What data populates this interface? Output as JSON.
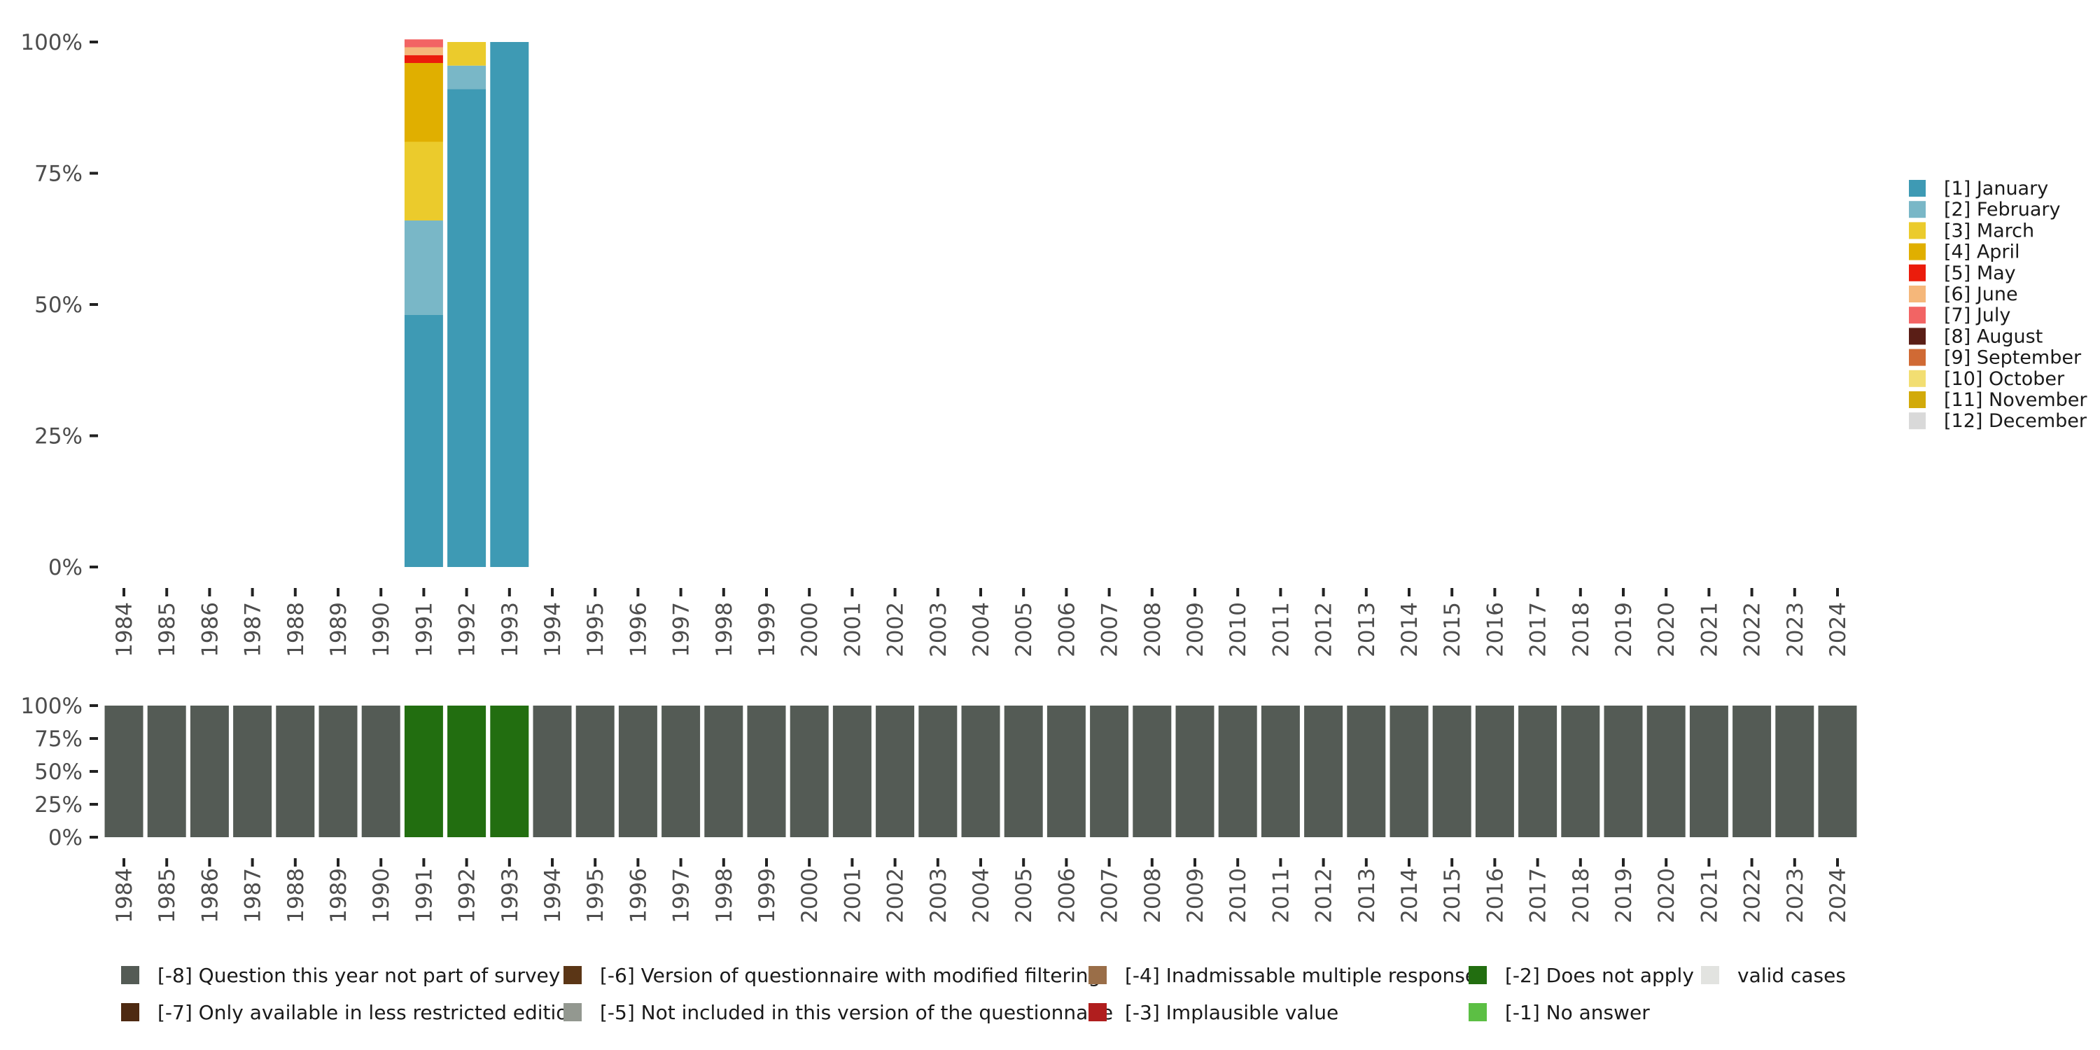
{
  "chart_data": [
    {
      "type": "bar",
      "stacked": true,
      "categories": [
        "1984",
        "1985",
        "1986",
        "1987",
        "1988",
        "1989",
        "1990",
        "1991",
        "1992",
        "1993",
        "1994",
        "1995",
        "1996",
        "1997",
        "1998",
        "1999",
        "2000",
        "2001",
        "2002",
        "2003",
        "2004",
        "2005",
        "2006",
        "2007",
        "2008",
        "2009",
        "2010",
        "2011",
        "2012",
        "2013",
        "2014",
        "2015",
        "2016",
        "2017",
        "2018",
        "2019",
        "2020",
        "2021",
        "2022",
        "2023",
        "2024"
      ],
      "y_ticks": [
        "0%",
        "25%",
        "50%",
        "75%",
        "100%"
      ],
      "ylim": [
        0,
        100
      ],
      "legend_position": "right",
      "series": [
        {
          "name": "[1] January",
          "color": "#3E9AB4",
          "values": [
            0,
            0,
            0,
            0,
            0,
            0,
            0,
            48,
            91,
            100,
            0,
            0,
            0,
            0,
            0,
            0,
            0,
            0,
            0,
            0,
            0,
            0,
            0,
            0,
            0,
            0,
            0,
            0,
            0,
            0,
            0,
            0,
            0,
            0,
            0,
            0,
            0,
            0,
            0,
            0,
            0
          ]
        },
        {
          "name": "[2] February",
          "color": "#79B7C7",
          "values": [
            0,
            0,
            0,
            0,
            0,
            0,
            0,
            18,
            4.5,
            0,
            0,
            0,
            0,
            0,
            0,
            0,
            0,
            0,
            0,
            0,
            0,
            0,
            0,
            0,
            0,
            0,
            0,
            0,
            0,
            0,
            0,
            0,
            0,
            0,
            0,
            0,
            0,
            0,
            0,
            0,
            0
          ]
        },
        {
          "name": "[3] March",
          "color": "#EBCB2C",
          "values": [
            0,
            0,
            0,
            0,
            0,
            0,
            0,
            15,
            4.5,
            0,
            0,
            0,
            0,
            0,
            0,
            0,
            0,
            0,
            0,
            0,
            0,
            0,
            0,
            0,
            0,
            0,
            0,
            0,
            0,
            0,
            0,
            0,
            0,
            0,
            0,
            0,
            0,
            0,
            0,
            0,
            0
          ]
        },
        {
          "name": "[4] April",
          "color": "#E0AF00",
          "values": [
            0,
            0,
            0,
            0,
            0,
            0,
            0,
            15,
            0,
            0,
            0,
            0,
            0,
            0,
            0,
            0,
            0,
            0,
            0,
            0,
            0,
            0,
            0,
            0,
            0,
            0,
            0,
            0,
            0,
            0,
            0,
            0,
            0,
            0,
            0,
            0,
            0,
            0,
            0,
            0,
            0
          ]
        },
        {
          "name": "[5] May",
          "color": "#EB1C0C",
          "values": [
            0,
            0,
            0,
            0,
            0,
            0,
            0,
            1.5,
            0,
            0,
            0,
            0,
            0,
            0,
            0,
            0,
            0,
            0,
            0,
            0,
            0,
            0,
            0,
            0,
            0,
            0,
            0,
            0,
            0,
            0,
            0,
            0,
            0,
            0,
            0,
            0,
            0,
            0,
            0,
            0,
            0
          ]
        },
        {
          "name": "[6] June",
          "color": "#F5B77A",
          "values": [
            0,
            0,
            0,
            0,
            0,
            0,
            0,
            1.5,
            0,
            0,
            0,
            0,
            0,
            0,
            0,
            0,
            0,
            0,
            0,
            0,
            0,
            0,
            0,
            0,
            0,
            0,
            0,
            0,
            0,
            0,
            0,
            0,
            0,
            0,
            0,
            0,
            0,
            0,
            0,
            0,
            0
          ]
        },
        {
          "name": "[7] July",
          "color": "#F26464",
          "values": [
            0,
            0,
            0,
            0,
            0,
            0,
            0,
            1.5,
            0,
            0,
            0,
            0,
            0,
            0,
            0,
            0,
            0,
            0,
            0,
            0,
            0,
            0,
            0,
            0,
            0,
            0,
            0,
            0,
            0,
            0,
            0,
            0,
            0,
            0,
            0,
            0,
            0,
            0,
            0,
            0,
            0
          ]
        },
        {
          "name": "[8] August",
          "color": "#5A1E16",
          "values": [
            0,
            0,
            0,
            0,
            0,
            0,
            0,
            0,
            0,
            0,
            0,
            0,
            0,
            0,
            0,
            0,
            0,
            0,
            0,
            0,
            0,
            0,
            0,
            0,
            0,
            0,
            0,
            0,
            0,
            0,
            0,
            0,
            0,
            0,
            0,
            0,
            0,
            0,
            0,
            0,
            0
          ]
        },
        {
          "name": "[9] September",
          "color": "#D06A34",
          "values": [
            0,
            0,
            0,
            0,
            0,
            0,
            0,
            0,
            0,
            0,
            0,
            0,
            0,
            0,
            0,
            0,
            0,
            0,
            0,
            0,
            0,
            0,
            0,
            0,
            0,
            0,
            0,
            0,
            0,
            0,
            0,
            0,
            0,
            0,
            0,
            0,
            0,
            0,
            0,
            0,
            0
          ]
        },
        {
          "name": "[10] October",
          "color": "#F2DE72",
          "values": [
            0,
            0,
            0,
            0,
            0,
            0,
            0,
            0,
            0,
            0,
            0,
            0,
            0,
            0,
            0,
            0,
            0,
            0,
            0,
            0,
            0,
            0,
            0,
            0,
            0,
            0,
            0,
            0,
            0,
            0,
            0,
            0,
            0,
            0,
            0,
            0,
            0,
            0,
            0,
            0,
            0
          ]
        },
        {
          "name": "[11] November",
          "color": "#D2AA0A",
          "values": [
            0,
            0,
            0,
            0,
            0,
            0,
            0,
            0,
            0,
            0,
            0,
            0,
            0,
            0,
            0,
            0,
            0,
            0,
            0,
            0,
            0,
            0,
            0,
            0,
            0,
            0,
            0,
            0,
            0,
            0,
            0,
            0,
            0,
            0,
            0,
            0,
            0,
            0,
            0,
            0,
            0
          ]
        },
        {
          "name": "[12] December",
          "color": "#D9D9D9",
          "values": [
            0,
            0,
            0,
            0,
            0,
            0,
            0,
            0,
            0,
            0,
            0,
            0,
            0,
            0,
            0,
            0,
            0,
            0,
            0,
            0,
            0,
            0,
            0,
            0,
            0,
            0,
            0,
            0,
            0,
            0,
            0,
            0,
            0,
            0,
            0,
            0,
            0,
            0,
            0,
            0,
            0
          ]
        }
      ]
    },
    {
      "type": "bar",
      "stacked": true,
      "categories": [
        "1984",
        "1985",
        "1986",
        "1987",
        "1988",
        "1989",
        "1990",
        "1991",
        "1992",
        "1993",
        "1994",
        "1995",
        "1996",
        "1997",
        "1998",
        "1999",
        "2000",
        "2001",
        "2002",
        "2003",
        "2004",
        "2005",
        "2006",
        "2007",
        "2008",
        "2009",
        "2010",
        "2011",
        "2012",
        "2013",
        "2014",
        "2015",
        "2016",
        "2017",
        "2018",
        "2019",
        "2020",
        "2021",
        "2022",
        "2023",
        "2024"
      ],
      "y_ticks": [
        "0%",
        "25%",
        "50%",
        "75%",
        "100%"
      ],
      "ylim": [
        0,
        100
      ],
      "legend_position": "bottom",
      "series": [
        {
          "name": "[-8] Question this year not part of survey",
          "color": "#545B55",
          "values": [
            100,
            100,
            100,
            100,
            100,
            100,
            100,
            0,
            0,
            0,
            100,
            100,
            100,
            100,
            100,
            100,
            100,
            100,
            100,
            100,
            100,
            100,
            100,
            100,
            100,
            100,
            100,
            100,
            100,
            100,
            100,
            100,
            100,
            100,
            100,
            100,
            100,
            100,
            100,
            100,
            100
          ]
        },
        {
          "name": "[-7] Only available in less restricted edition",
          "color": "#4E2A12",
          "values": [
            0,
            0,
            0,
            0,
            0,
            0,
            0,
            0,
            0,
            0,
            0,
            0,
            0,
            0,
            0,
            0,
            0,
            0,
            0,
            0,
            0,
            0,
            0,
            0,
            0,
            0,
            0,
            0,
            0,
            0,
            0,
            0,
            0,
            0,
            0,
            0,
            0,
            0,
            0,
            0,
            0
          ]
        },
        {
          "name": "[-6] Version of questionnaire with modified filtering",
          "color": "#5B3616",
          "values": [
            0,
            0,
            0,
            0,
            0,
            0,
            0,
            0,
            0,
            0,
            0,
            0,
            0,
            0,
            0,
            0,
            0,
            0,
            0,
            0,
            0,
            0,
            0,
            0,
            0,
            0,
            0,
            0,
            0,
            0,
            0,
            0,
            0,
            0,
            0,
            0,
            0,
            0,
            0,
            0,
            0
          ]
        },
        {
          "name": "[-5] Not included in this version of the questionnaire",
          "color": "#939890",
          "values": [
            0,
            0,
            0,
            0,
            0,
            0,
            0,
            0,
            0,
            0,
            0,
            0,
            0,
            0,
            0,
            0,
            0,
            0,
            0,
            0,
            0,
            0,
            0,
            0,
            0,
            0,
            0,
            0,
            0,
            0,
            0,
            0,
            0,
            0,
            0,
            0,
            0,
            0,
            0,
            0,
            0
          ]
        },
        {
          "name": "[-4] Inadmissable multiple response",
          "color": "#9A6E48",
          "values": [
            0,
            0,
            0,
            0,
            0,
            0,
            0,
            0,
            0,
            0,
            0,
            0,
            0,
            0,
            0,
            0,
            0,
            0,
            0,
            0,
            0,
            0,
            0,
            0,
            0,
            0,
            0,
            0,
            0,
            0,
            0,
            0,
            0,
            0,
            0,
            0,
            0,
            0,
            0,
            0,
            0
          ]
        },
        {
          "name": "[-3] Implausible value",
          "color": "#B01E1E",
          "values": [
            0,
            0,
            0,
            0,
            0,
            0,
            0,
            0,
            0,
            0,
            0,
            0,
            0,
            0,
            0,
            0,
            0,
            0,
            0,
            0,
            0,
            0,
            0,
            0,
            0,
            0,
            0,
            0,
            0,
            0,
            0,
            0,
            0,
            0,
            0,
            0,
            0,
            0,
            0,
            0,
            0
          ]
        },
        {
          "name": "[-2] Does not apply",
          "color": "#226E10",
          "values": [
            0,
            0,
            0,
            0,
            0,
            0,
            0,
            100,
            100,
            100,
            0,
            0,
            0,
            0,
            0,
            0,
            0,
            0,
            0,
            0,
            0,
            0,
            0,
            0,
            0,
            0,
            0,
            0,
            0,
            0,
            0,
            0,
            0,
            0,
            0,
            0,
            0,
            0,
            0,
            0,
            0
          ]
        },
        {
          "name": "[-1] No answer",
          "color": "#5CBF44",
          "values": [
            0,
            0,
            0,
            0,
            0,
            0,
            0,
            0,
            0,
            0,
            0,
            0,
            0,
            0,
            0,
            0,
            0,
            0,
            0,
            0,
            0,
            0,
            0,
            0,
            0,
            0,
            0,
            0,
            0,
            0,
            0,
            0,
            0,
            0,
            0,
            0,
            0,
            0,
            0,
            0,
            0
          ]
        },
        {
          "name": "valid cases",
          "color": "#E2E3E0",
          "values": [
            0,
            0,
            0,
            0,
            0,
            0,
            0,
            0,
            0,
            0,
            0,
            0,
            0,
            0,
            0,
            0,
            0,
            0,
            0,
            0,
            0,
            0,
            0,
            0,
            0,
            0,
            0,
            0,
            0,
            0,
            0,
            0,
            0,
            0,
            0,
            0,
            0,
            0,
            0,
            0,
            0
          ]
        }
      ],
      "legend_order": [
        "[-8] Question this year not part of survey",
        "[-7] Only available in less restricted edition",
        "[-6] Version of questionnaire with modified filtering",
        "[-5] Not included in this version of the questionnaire",
        "[-4] Inadmissable multiple response",
        "[-3] Implausible value",
        "[-2] Does not apply",
        "[-1] No answer",
        "valid cases"
      ]
    }
  ]
}
